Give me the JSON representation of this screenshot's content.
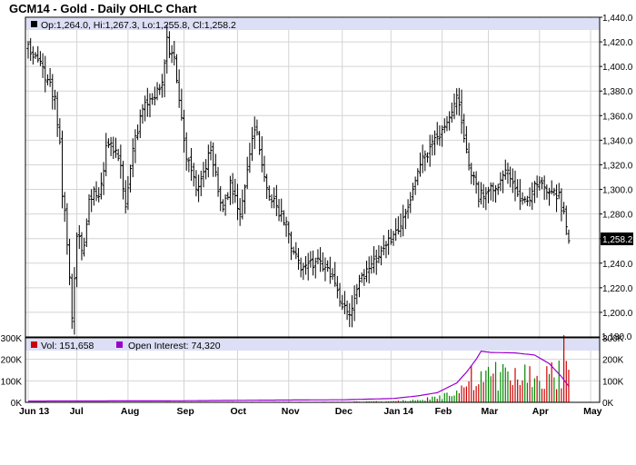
{
  "chart_data": [
    {
      "type": "ohlc",
      "title": "GCM14 - Gold - Daily OHLC Chart",
      "legend": "Op:1,264.0, Hi:1,267.3, Lo:1,255.8, Cl:1,258.2",
      "last_value_label": "1,258.2",
      "ylim": [
        1180,
        1440
      ],
      "y_ticks": [
        "1,200.0",
        "1,220.0",
        "1,240.0",
        "1,260.0",
        "1,280.0",
        "1,300.0",
        "1,320.0",
        "1,340.0",
        "1,360.0",
        "1,380.0",
        "1,400.0",
        "1,420.0",
        "1,440.0"
      ],
      "y_tick_values": [
        1200,
        1220,
        1240,
        1260,
        1280,
        1300,
        1320,
        1340,
        1360,
        1380,
        1400,
        1420,
        1440
      ],
      "bottom_label": "1,180.0",
      "grid": true,
      "months": [
        "Jun 13",
        "Jul",
        "Aug",
        "Sep",
        "Oct",
        "Nov",
        "Dec",
        "Jan 14",
        "Feb",
        "Mar",
        "Apr",
        "May"
      ],
      "waypoints": [
        {
          "d": 0,
          "p": 1415
        },
        {
          "d": 4,
          "p": 1405
        },
        {
          "d": 8,
          "p": 1390
        },
        {
          "d": 11,
          "p": 1375
        },
        {
          "d": 13,
          "p": 1340
        },
        {
          "d": 14,
          "p": 1290
        },
        {
          "d": 15,
          "p": 1280
        },
        {
          "d": 17,
          "p": 1230
        },
        {
          "d": 18,
          "p": 1195
        },
        {
          "d": 20,
          "p": 1265
        },
        {
          "d": 23,
          "p": 1250
        },
        {
          "d": 25,
          "p": 1295
        },
        {
          "d": 30,
          "p": 1300
        },
        {
          "d": 32,
          "p": 1335
        },
        {
          "d": 37,
          "p": 1330
        },
        {
          "d": 40,
          "p": 1290
        },
        {
          "d": 43,
          "p": 1330
        },
        {
          "d": 48,
          "p": 1375
        },
        {
          "d": 50,
          "p": 1370
        },
        {
          "d": 55,
          "p": 1390
        },
        {
          "d": 57,
          "p": 1420
        },
        {
          "d": 60,
          "p": 1405
        },
        {
          "d": 62,
          "p": 1370
        },
        {
          "d": 65,
          "p": 1325
        },
        {
          "d": 70,
          "p": 1300
        },
        {
          "d": 75,
          "p": 1335
        },
        {
          "d": 80,
          "p": 1280
        },
        {
          "d": 83,
          "p": 1305
        },
        {
          "d": 87,
          "p": 1275
        },
        {
          "d": 90,
          "p": 1320
        },
        {
          "d": 93,
          "p": 1350
        },
        {
          "d": 95,
          "p": 1335
        },
        {
          "d": 98,
          "p": 1300
        },
        {
          "d": 102,
          "p": 1285
        },
        {
          "d": 106,
          "p": 1275
        },
        {
          "d": 109,
          "p": 1245
        },
        {
          "d": 114,
          "p": 1235
        },
        {
          "d": 119,
          "p": 1245
        },
        {
          "d": 124,
          "p": 1230
        },
        {
          "d": 129,
          "p": 1205
        },
        {
          "d": 133,
          "p": 1200
        },
        {
          "d": 137,
          "p": 1230
        },
        {
          "d": 142,
          "p": 1240
        },
        {
          "d": 146,
          "p": 1255
        },
        {
          "d": 151,
          "p": 1265
        },
        {
          "d": 156,
          "p": 1290
        },
        {
          "d": 161,
          "p": 1320
        },
        {
          "d": 166,
          "p": 1335
        },
        {
          "d": 170,
          "p": 1345
        },
        {
          "d": 174,
          "p": 1365
        },
        {
          "d": 176,
          "p": 1375
        },
        {
          "d": 178,
          "p": 1355
        },
        {
          "d": 181,
          "p": 1320
        },
        {
          "d": 185,
          "p": 1295
        },
        {
          "d": 189,
          "p": 1300
        },
        {
          "d": 193,
          "p": 1305
        },
        {
          "d": 196,
          "p": 1320
        },
        {
          "d": 199,
          "p": 1305
        },
        {
          "d": 202,
          "p": 1290
        },
        {
          "d": 206,
          "p": 1295
        },
        {
          "d": 210,
          "p": 1305
        },
        {
          "d": 214,
          "p": 1300
        },
        {
          "d": 218,
          "p": 1295
        },
        {
          "d": 220,
          "p": 1280
        },
        {
          "d": 222,
          "p": 1260
        }
      ],
      "last_bar": {
        "open": 1264.0,
        "high": 1267.3,
        "low": 1255.8,
        "close": 1258.2
      }
    },
    {
      "type": "bar+line",
      "legend_volume": "Vol: 151,658",
      "legend_open_interest": "Open Interest: 74,320",
      "ylim": [
        0,
        300000
      ],
      "left_ticks": [
        "300K",
        "200K",
        "100K",
        "0K"
      ],
      "right_ticks": [
        "300K",
        "200K",
        "100K",
        "0K"
      ],
      "tick_values": [
        300000,
        200000,
        100000,
        0
      ],
      "open_interest": [
        {
          "d": 0,
          "v": 6000
        },
        {
          "d": 60,
          "v": 7000
        },
        {
          "d": 95,
          "v": 10000
        },
        {
          "d": 130,
          "v": 12000
        },
        {
          "d": 150,
          "v": 18000
        },
        {
          "d": 160,
          "v": 30000
        },
        {
          "d": 168,
          "v": 45000
        },
        {
          "d": 176,
          "v": 90000
        },
        {
          "d": 180,
          "v": 140000
        },
        {
          "d": 184,
          "v": 200000
        },
        {
          "d": 186,
          "v": 238000
        },
        {
          "d": 190,
          "v": 232000
        },
        {
          "d": 200,
          "v": 230000
        },
        {
          "d": 208,
          "v": 220000
        },
        {
          "d": 214,
          "v": 180000
        },
        {
          "d": 219,
          "v": 120000
        },
        {
          "d": 222,
          "v": 74320
        }
      ],
      "volume_waypoints": [
        {
          "d": 0,
          "v": 2000
        },
        {
          "d": 130,
          "v": 2500
        },
        {
          "d": 145,
          "v": 6000
        },
        {
          "d": 158,
          "v": 12000
        },
        {
          "d": 168,
          "v": 25000
        },
        {
          "d": 175,
          "v": 60000
        },
        {
          "d": 180,
          "v": 130000
        },
        {
          "d": 186,
          "v": 160000
        },
        {
          "d": 200,
          "v": 150000
        },
        {
          "d": 212,
          "v": 150000
        },
        {
          "d": 220,
          "v": 180000
        },
        {
          "d": 222,
          "v": 151658
        }
      ],
      "volume_spike": {
        "d": 220,
        "v": 312000
      }
    }
  ],
  "colors": {
    "background": "#ffffff",
    "grid": "#d4d4d4",
    "legend_band": "#dcdff5",
    "bars": "#000000",
    "volume_down": "#cc0000",
    "volume_up": "#008800",
    "open_interest": "#9900cc",
    "last_box": "#000000"
  }
}
